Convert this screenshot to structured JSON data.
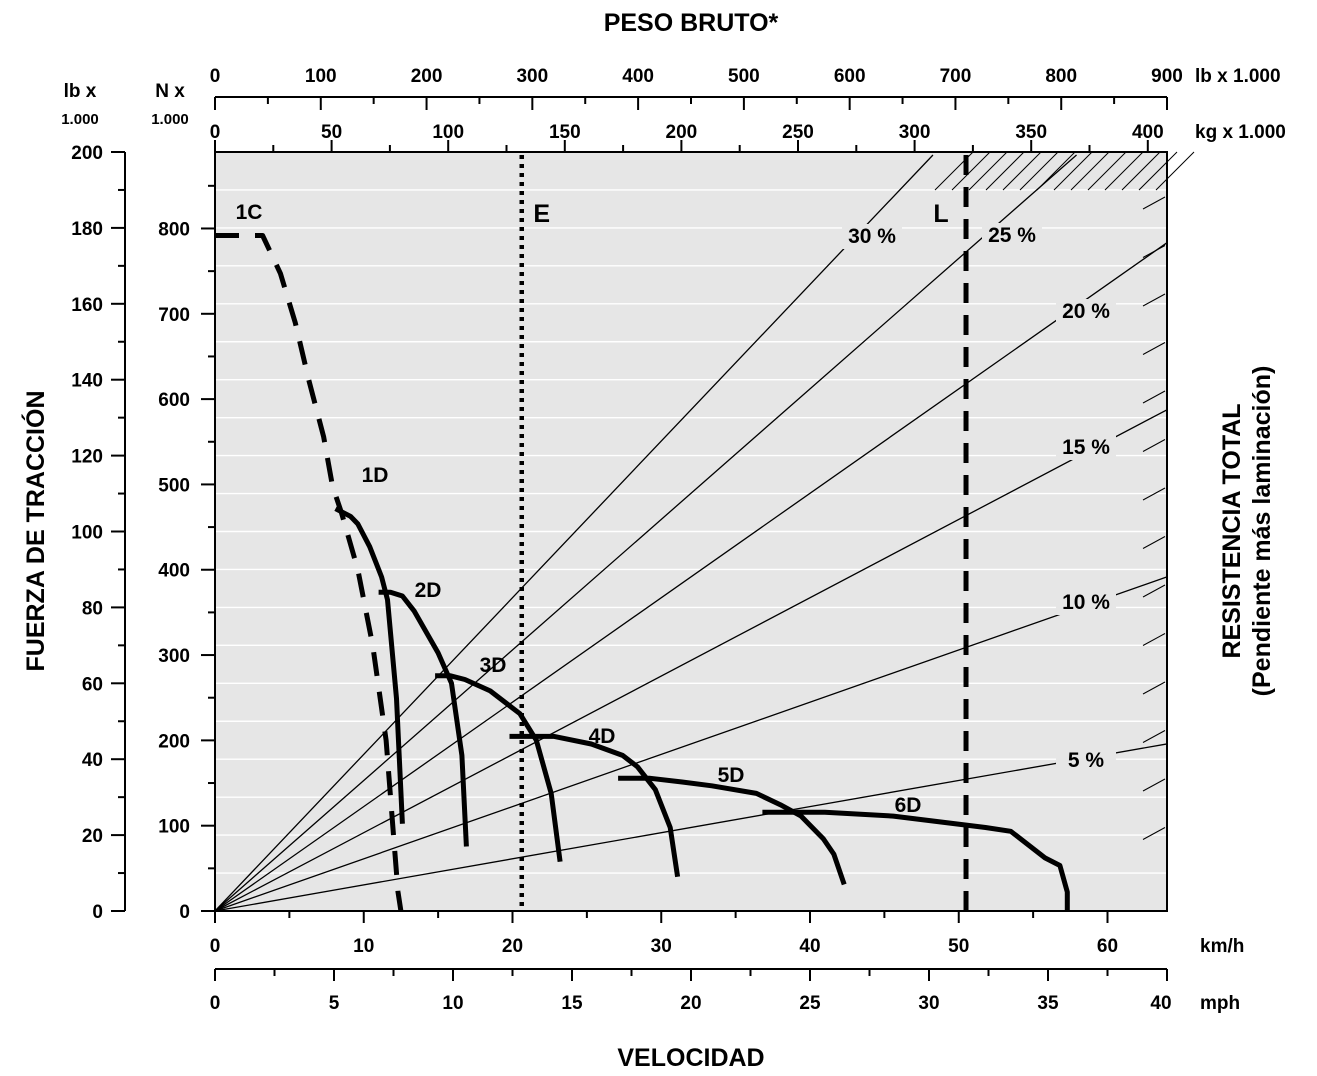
{
  "chart_data": {
    "type": "line",
    "title": "PESO BRUTO*",
    "xlabel": "VELOCIDAD",
    "ylabel": "FUERZA DE TRACCIÓN",
    "ylabel_right": "RESISTENCIA TOTAL",
    "ylabel_right_sub": "(Pendiente más laminación)",
    "grid": true,
    "axes": {
      "kmh": {
        "unit": "km/h",
        "range": [
          0,
          64
        ],
        "ticks": [
          0,
          10,
          20,
          30,
          40,
          50,
          60
        ]
      },
      "mph": {
        "unit": "mph",
        "range": [
          0,
          40
        ],
        "ticks": [
          0,
          5,
          10,
          15,
          20,
          25,
          30,
          35,
          40
        ]
      },
      "lbf": {
        "unit_line1": "lb x",
        "unit_line2": "1.000",
        "range": [
          0,
          200
        ],
        "ticks": [
          0,
          20,
          40,
          60,
          80,
          100,
          120,
          140,
          160,
          180,
          200
        ]
      },
      "kn": {
        "unit_line1": "N x",
        "unit_line2": "1.000",
        "ticks": [
          0,
          100,
          200,
          300,
          400,
          500,
          600,
          700,
          800
        ]
      },
      "weight_lb": {
        "unit": "lb x 1.000",
        "range": [
          0,
          900
        ],
        "ticks": [
          0,
          100,
          200,
          300,
          400,
          500,
          600,
          700,
          800,
          900
        ]
      },
      "weight_kg": {
        "unit": "kg x 1.000",
        "ticks": [
          0,
          50,
          100,
          150,
          200,
          250,
          300,
          350,
          400
        ]
      }
    },
    "grades": [
      {
        "label": "5 %",
        "value": 5
      },
      {
        "label": "10 %",
        "value": 10
      },
      {
        "label": "15 %",
        "value": 15
      },
      {
        "label": "20 %",
        "value": 20
      },
      {
        "label": "25 %",
        "value": 25
      },
      {
        "label": "30 %",
        "value": 30
      }
    ],
    "reference_lines": [
      {
        "label": "E",
        "weight_lb": 290,
        "style": "dotted"
      },
      {
        "label": "L",
        "weight_lb": 710,
        "style": "dashed"
      }
    ],
    "series": [
      {
        "name": "1C",
        "style": "dashed",
        "x_kmh": [
          0,
          1.5,
          3.2,
          4.4,
          5.4,
          6.3,
          7.3,
          7.9,
          8.5,
          9.6,
          10.6,
          11.5,
          12.0,
          12.3,
          12.5
        ],
        "y_lbf": [
          178,
          178,
          178,
          168,
          155,
          140,
          125,
          112,
          105,
          90,
          70,
          45,
          20,
          5,
          0
        ]
      },
      {
        "name": "1D",
        "style": "solid",
        "x_kmh": [
          8.1,
          9.1,
          9.6,
          10.4,
          11.2,
          11.6,
          12.2,
          12.6
        ],
        "y_lbf": [
          106,
          104,
          102,
          96,
          88,
          82,
          56,
          23
        ]
      },
      {
        "name": "2D",
        "style": "solid",
        "x_kmh": [
          11.0,
          11.8,
          12.6,
          13.4,
          15.0,
          15.9,
          16.6,
          16.9
        ],
        "y_lbf": [
          84,
          84,
          83,
          79,
          68,
          60,
          41,
          17
        ]
      },
      {
        "name": "3D",
        "style": "solid",
        "x_kmh": [
          14.8,
          15.8,
          16.8,
          18.5,
          20.5,
          21.6,
          22.6,
          23.2
        ],
        "y_lbf": [
          62,
          62,
          61,
          58,
          52,
          45,
          31,
          13
        ]
      },
      {
        "name": "4D",
        "style": "solid",
        "x_kmh": [
          19.8,
          22.8,
          25.3,
          27.4,
          28.4,
          29.6,
          30.6,
          31.1
        ],
        "y_lbf": [
          46,
          46,
          44,
          41,
          38,
          32,
          22,
          9
        ]
      },
      {
        "name": "5D",
        "style": "solid",
        "x_kmh": [
          27.1,
          29.2,
          31.4,
          33.4,
          36.4,
          38.0,
          39.4,
          40.9,
          41.6,
          42.3
        ],
        "y_lbf": [
          35,
          35,
          34,
          33,
          31,
          28,
          25,
          19,
          15,
          7
        ]
      },
      {
        "name": "6D",
        "style": "solid",
        "x_kmh": [
          36.8,
          41.0,
          45.6,
          51.8,
          53.5,
          55.8,
          56.8,
          57.3,
          57.3
        ],
        "y_lbf": [
          26,
          26,
          25,
          22,
          21,
          14,
          12,
          5,
          0
        ]
      }
    ]
  }
}
